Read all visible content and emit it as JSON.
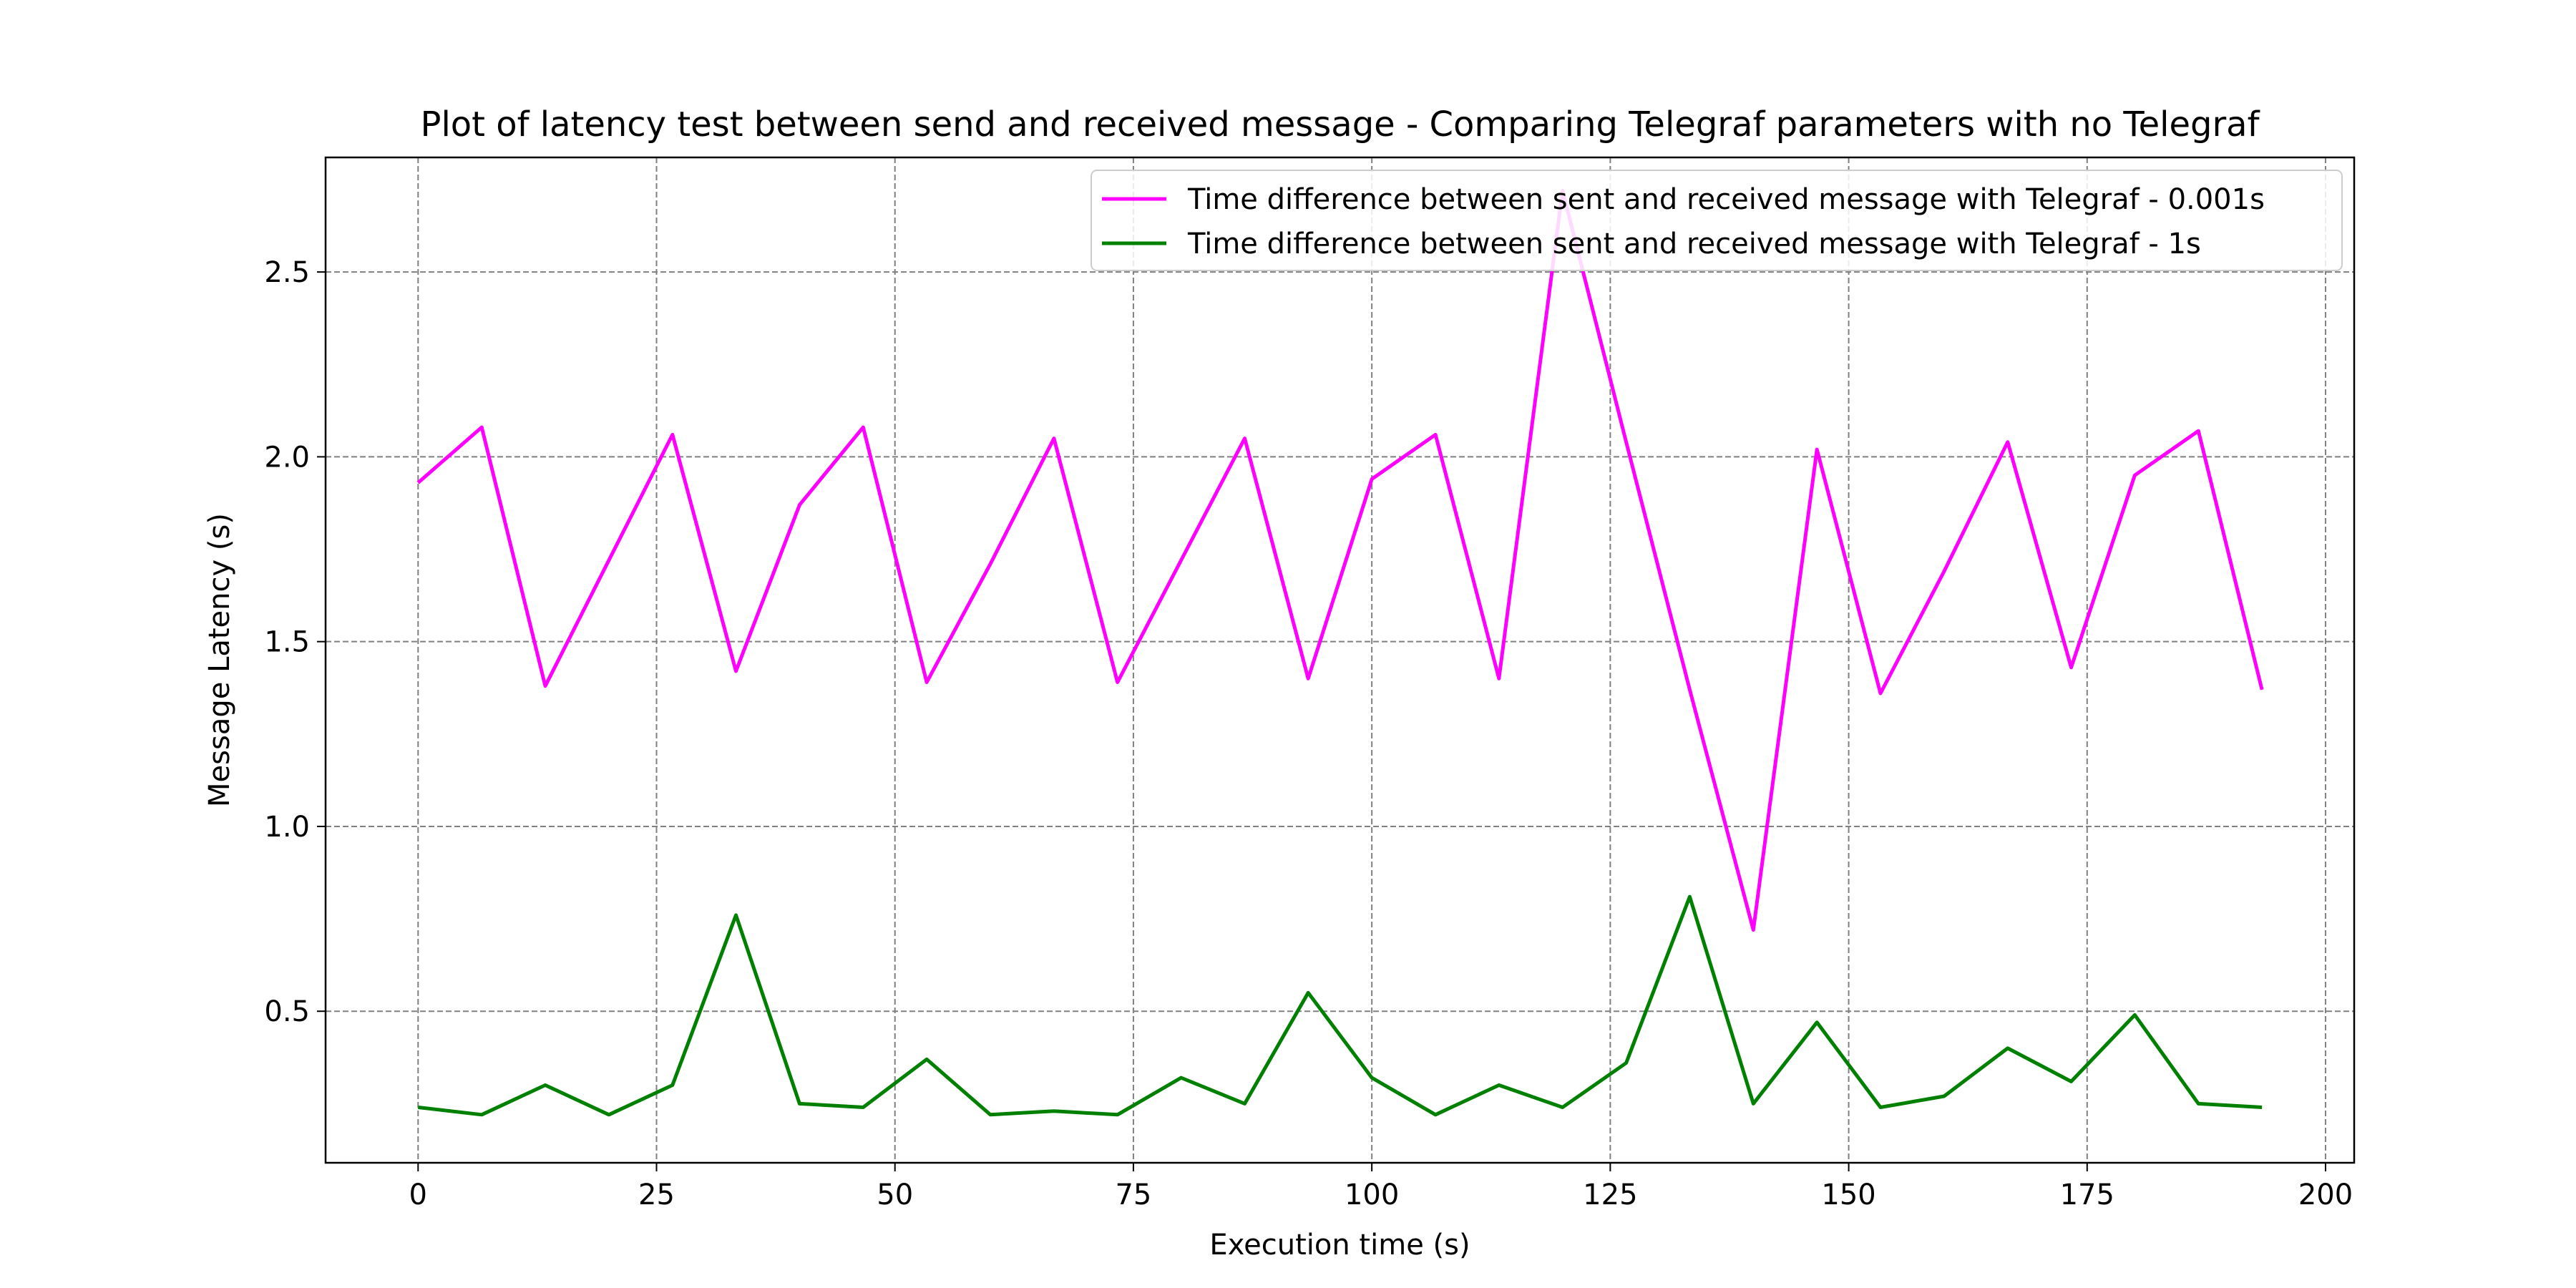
{
  "chart_data": {
    "type": "line",
    "title": "Plot of latency test between send and received message - Comparing Telegraf parameters with no Telegraf",
    "xlabel": "Execution time (s)",
    "ylabel": "Message Latency (s)",
    "xlim": [
      -9.7,
      203.0
    ],
    "ylim": [
      0.09,
      2.81
    ],
    "x_ticks": [
      0,
      25,
      50,
      75,
      100,
      125,
      150,
      175,
      200
    ],
    "y_ticks": [
      0.5,
      1.0,
      1.5,
      2.0,
      2.5
    ],
    "grid": true,
    "legend_position": "upper right",
    "x": [
      0,
      6.67,
      13.33,
      20,
      26.67,
      33.33,
      40,
      46.67,
      53.33,
      60,
      66.67,
      73.33,
      80,
      86.67,
      93.33,
      100,
      106.67,
      113.33,
      120,
      126.67,
      133.33,
      140,
      146.67,
      153.33,
      160,
      166.67,
      173.33,
      180,
      186.67,
      193.33
    ],
    "series": [
      {
        "name": "Time difference between sent and received message with Telegraf - 0.001s",
        "color": "#ff00ff",
        "values": [
          1.93,
          2.08,
          1.38,
          1.72,
          2.06,
          1.42,
          1.87,
          2.08,
          1.39,
          1.71,
          2.05,
          1.39,
          1.72,
          2.05,
          1.4,
          1.94,
          2.06,
          1.4,
          2.72,
          2.04,
          1.37,
          0.72,
          2.02,
          1.36,
          1.69,
          2.04,
          1.43,
          1.95,
          2.07,
          1.37
        ]
      },
      {
        "name": "Time difference between sent and received message with Telegraf - 1s",
        "color": "#008000",
        "values": [
          0.24,
          0.22,
          0.3,
          0.22,
          0.3,
          0.76,
          0.25,
          0.24,
          0.37,
          0.22,
          0.23,
          0.22,
          0.32,
          0.25,
          0.55,
          0.32,
          0.22,
          0.3,
          0.24,
          0.36,
          0.81,
          0.25,
          0.47,
          0.24,
          0.27,
          0.4,
          0.31,
          0.49,
          0.25,
          0.24
        ]
      }
    ]
  }
}
